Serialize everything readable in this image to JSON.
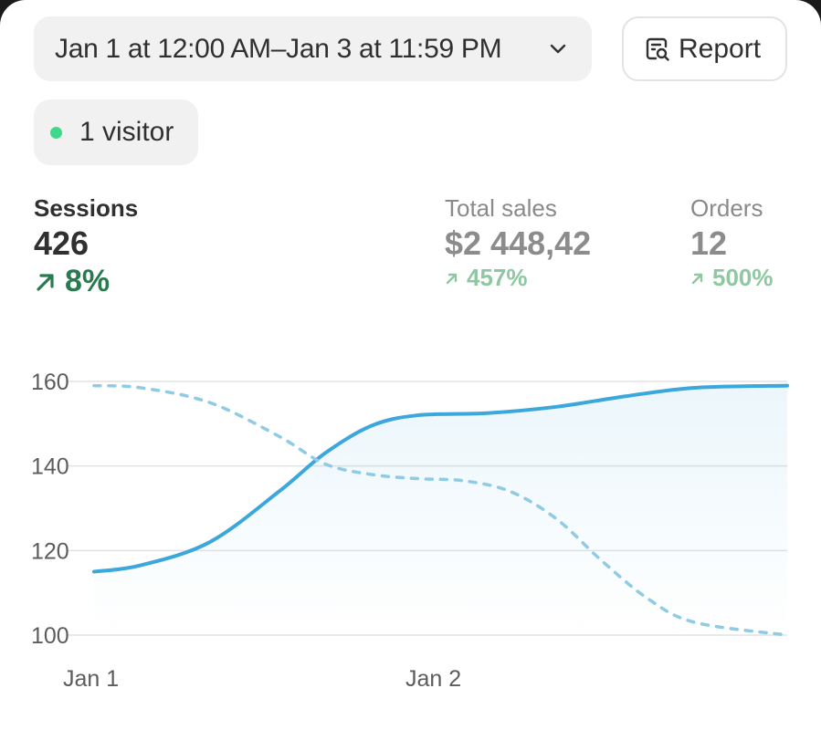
{
  "header": {
    "date_range_label": "Jan 1 at 12:00 AM–Jan 3 at 11:59 PM",
    "report_label": "Report"
  },
  "visitors": {
    "label": "1 visitor",
    "dot_color": "#3ed98d"
  },
  "metrics": {
    "sessions": {
      "label": "Sessions",
      "value": "426",
      "change": "8%"
    },
    "total_sales": {
      "label": "Total sales",
      "value": "$2 448,42",
      "change": "457%"
    },
    "orders": {
      "label": "Orders",
      "value": "12",
      "change": "500%"
    }
  },
  "chart_data": {
    "type": "line",
    "x_tick_labels": [
      "Jan 1",
      "Jan 2"
    ],
    "y_ticks": [
      100,
      120,
      140,
      160
    ],
    "ylim": [
      100,
      160
    ],
    "grid": true,
    "series": [
      {
        "style": "solid",
        "color": "#3ba7dc",
        "x": [
          0,
          0.067,
          0.167,
          0.267,
          0.333,
          0.4,
          0.467,
          0.567,
          0.667,
          0.767,
          0.867,
          1.0
        ],
        "values": [
          115,
          116.5,
          122,
          134,
          143,
          149.5,
          152,
          152.5,
          154,
          156.5,
          158.5,
          159
        ]
      },
      {
        "style": "dashed",
        "color": "#8fcbe5",
        "x": [
          0,
          0.067,
          0.167,
          0.267,
          0.333,
          0.4,
          0.467,
          0.533,
          0.6,
          0.667,
          0.733,
          0.8,
          0.867,
          1.0
        ],
        "values": [
          159,
          158.5,
          155,
          147,
          140.5,
          138,
          137,
          136.5,
          134,
          127.5,
          117.5,
          108.5,
          103,
          100
        ]
      }
    ]
  }
}
